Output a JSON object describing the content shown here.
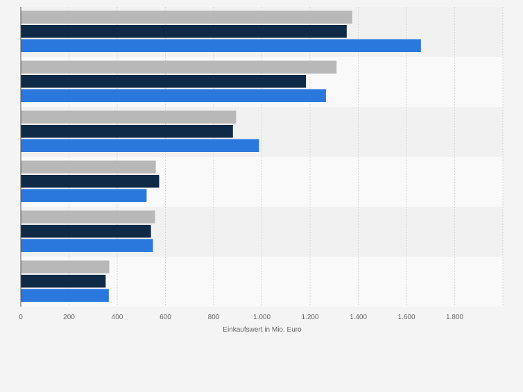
{
  "chart_data": {
    "type": "bar",
    "orientation": "horizontal",
    "categories": [
      "",
      "",
      "",
      "",
      "",
      ""
    ],
    "series": [
      {
        "color": "#b8b8b8",
        "values": [
          1375,
          1310,
          893,
          560,
          557,
          367
        ]
      },
      {
        "color": "#0f2a47",
        "values": [
          1352,
          1183,
          880,
          574,
          540,
          352
        ]
      },
      {
        "color": "#2a77dd",
        "values": [
          1660,
          1266,
          988,
          522,
          548,
          365
        ]
      }
    ],
    "xlim": [
      0,
      2000
    ],
    "xticks": [
      0,
      200,
      400,
      600,
      800,
      1000,
      1200,
      1400,
      1600,
      1800
    ],
    "xtick_labels": [
      "0",
      "200",
      "400",
      "600",
      "800",
      "1.000",
      "1.200",
      "1.400",
      "1.600",
      "1.800"
    ],
    "xlabel": "Einkaufswert in Mio. Euro",
    "grid": true,
    "legend": false
  }
}
